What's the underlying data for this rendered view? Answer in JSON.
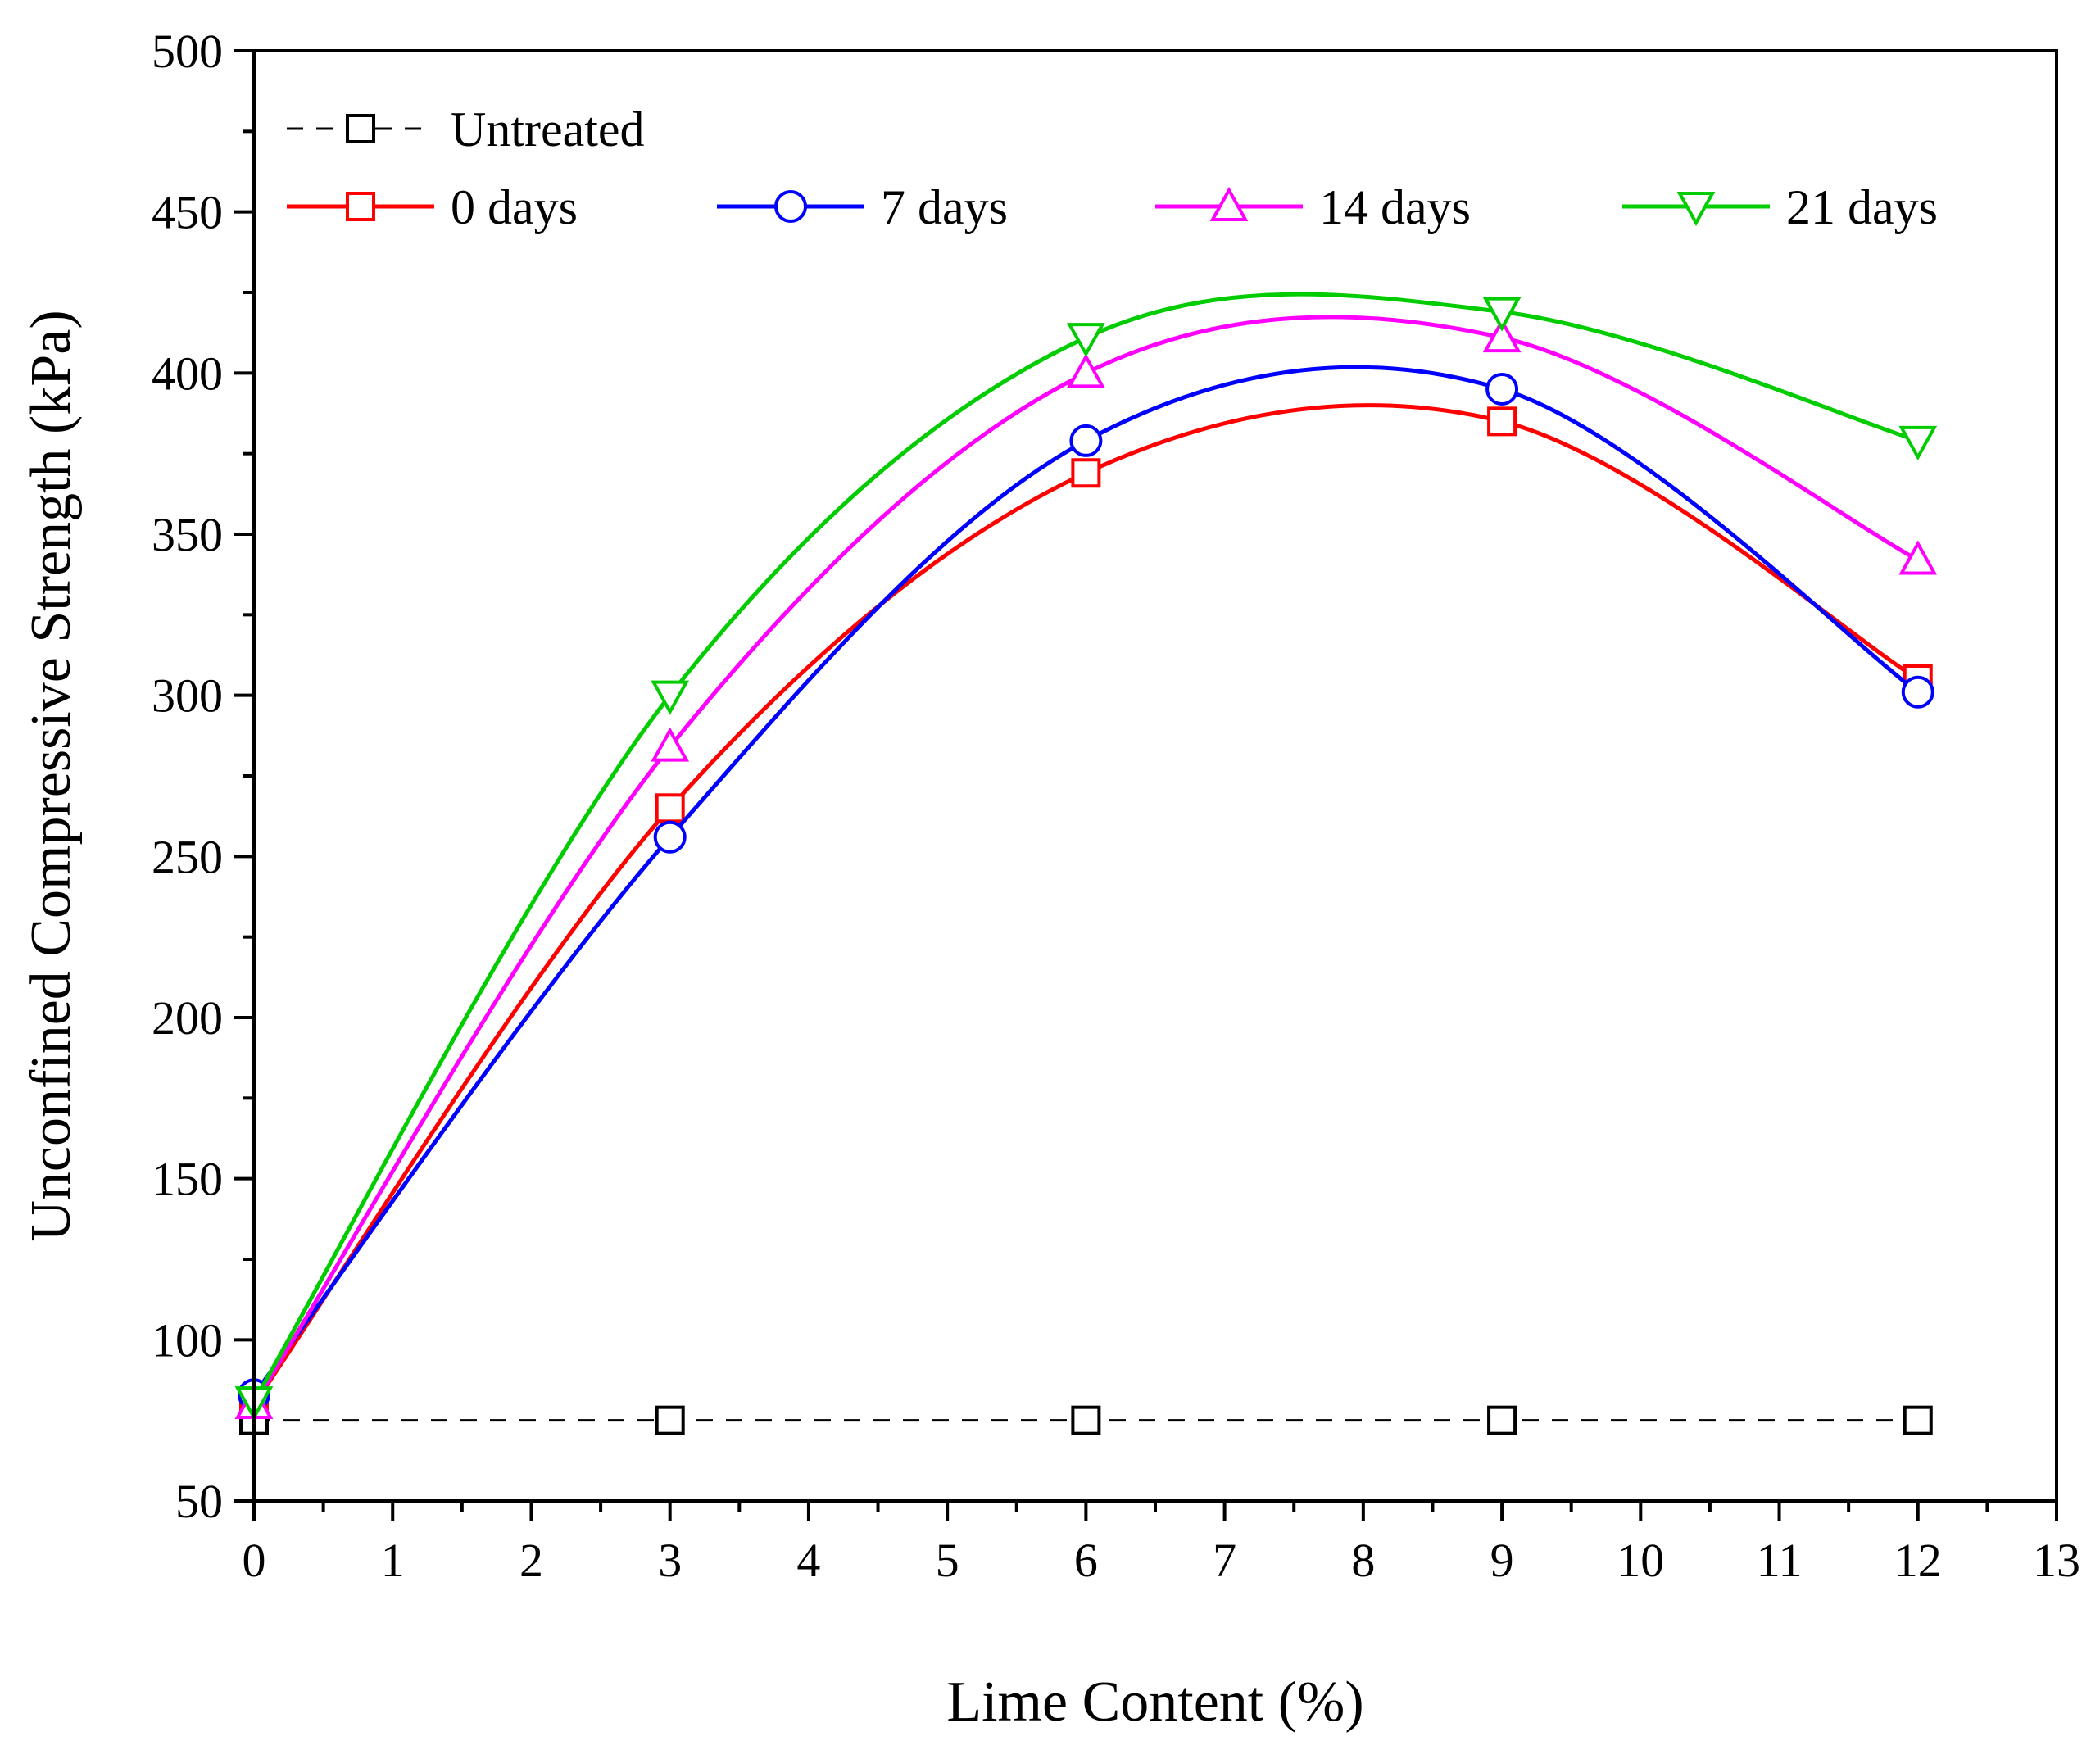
{
  "chart_data": {
    "type": "line",
    "title": "",
    "xlabel": "Lime Content (%)",
    "ylabel": "Unconfined Compressive Strength (kPa)",
    "xlim": [
      0,
      13
    ],
    "ylim": [
      50,
      500
    ],
    "x_ticks": [
      "0",
      "1",
      "2",
      "3",
      "4",
      "5",
      "6",
      "7",
      "8",
      "9",
      "10",
      "11",
      "12",
      "13"
    ],
    "y_ticks": [
      "50",
      "100",
      "150",
      "200",
      "250",
      "300",
      "350",
      "400",
      "450",
      "500"
    ],
    "grid": false,
    "legend_position": "top-left",
    "x": [
      0,
      3,
      6,
      9,
      12
    ],
    "series": [
      {
        "name": "Untreated",
        "values": [
          75,
          75,
          75,
          75,
          75
        ],
        "color": "#000000",
        "marker": "square",
        "line": "dashed",
        "smooth": false
      },
      {
        "name": "0 days",
        "values": [
          80,
          265,
          369,
          385,
          305
        ],
        "color": "#ff0000",
        "marker": "square",
        "line": "solid",
        "smooth": true
      },
      {
        "name": "7 days",
        "values": [
          83,
          256,
          379,
          395,
          301
        ],
        "color": "#0000ff",
        "marker": "circle",
        "line": "solid",
        "smooth": true
      },
      {
        "name": "14 days",
        "values": [
          80,
          284,
          400,
          411,
          342
        ],
        "color": "#ff00ff",
        "marker": "triangle-up",
        "line": "solid",
        "smooth": true
      },
      {
        "name": "21 days",
        "values": [
          81,
          300,
          411,
          419,
          379
        ],
        "color": "#00cc00",
        "marker": "triangle-down",
        "line": "solid",
        "smooth": true
      }
    ]
  }
}
